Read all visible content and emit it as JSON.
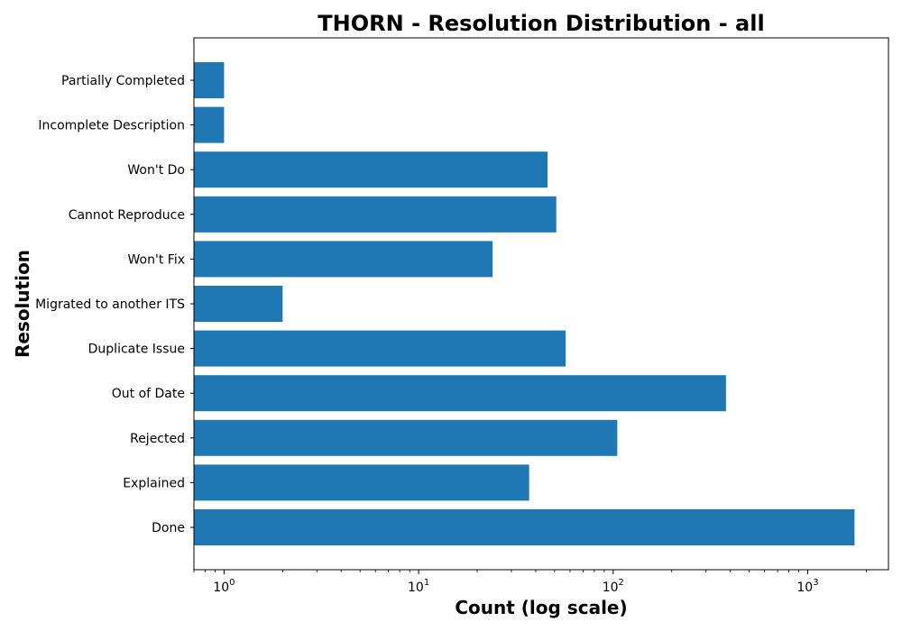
{
  "chart_data": {
    "type": "bar",
    "orientation": "horizontal",
    "title": "THORN - Resolution Distribution - all",
    "xlabel": "Count (log scale)",
    "ylabel": "Resolution",
    "xscale": "log",
    "xlim": [
      0.7,
      2600
    ],
    "x_ticks": [
      {
        "value": 1,
        "base": "10",
        "exp": "0"
      },
      {
        "value": 10,
        "base": "10",
        "exp": "1"
      },
      {
        "value": 100,
        "base": "10",
        "exp": "2"
      },
      {
        "value": 1000,
        "base": "10",
        "exp": "3"
      }
    ],
    "categories": [
      "Partially Completed",
      "Incomplete Description",
      "Won't Do",
      "Cannot Reproduce",
      "Won't Fix",
      "Migrated to another ITS",
      "Duplicate Issue",
      "Out of Date",
      "Rejected",
      "Explained",
      "Done"
    ],
    "values": [
      1,
      1,
      46,
      51,
      24,
      2,
      57,
      380,
      105,
      37,
      1740
    ],
    "bar_color": "#1f77b4",
    "grid": false,
    "legend": "none"
  }
}
